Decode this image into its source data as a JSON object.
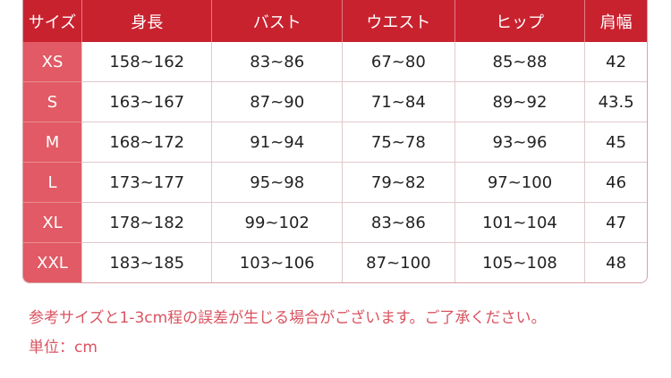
{
  "table": {
    "headers": [
      "サイズ",
      "身長",
      "バスト",
      "ウエスト",
      "ヒップ",
      "肩幅"
    ],
    "rows": [
      [
        "XS",
        "158~162",
        "83~86",
        "67~80",
        "85~88",
        "42"
      ],
      [
        "S",
        "163~167",
        "87~90",
        "71~84",
        "89~92",
        "43.5"
      ],
      [
        "M",
        "168~172",
        "91~94",
        "75~78",
        "93~96",
        "45"
      ],
      [
        "L",
        "173~177",
        "95~98",
        "79~82",
        "97~100",
        "46"
      ],
      [
        "XL",
        "178~182",
        "99~102",
        "83~86",
        "101~104",
        "47"
      ],
      [
        "XXL",
        "183~185",
        "103~106",
        "87~100",
        "105~108",
        "48"
      ]
    ]
  },
  "notes": {
    "disclaimer": "参考サイズと1-3cm程の誤差が生じる場合がございます。ご了承ください。",
    "unit": "単位：cm"
  },
  "colors": {
    "header": "#c9222f",
    "size_column": "#e15a65",
    "note_text": "#d9535f"
  }
}
